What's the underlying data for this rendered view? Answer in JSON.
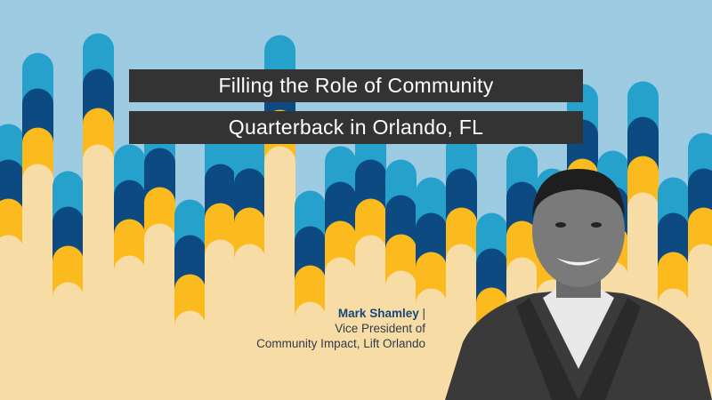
{
  "title": {
    "line1": "Filling the Role of Community",
    "line2": "Quarterback in Orlando, FL"
  },
  "speaker": {
    "name": "Mark Shamley",
    "separator": "|",
    "role_line1": "Vice President of",
    "role_line2": "Community Impact, Lift Orlando"
  },
  "colors": {
    "sky": "#9ccbe2",
    "teal": "#25a1cb",
    "navy": "#0d4a82",
    "yellow": "#fbbb1f",
    "cream": "#f8dca5",
    "title_box": "#333333",
    "name_text": "#17467a"
  }
}
